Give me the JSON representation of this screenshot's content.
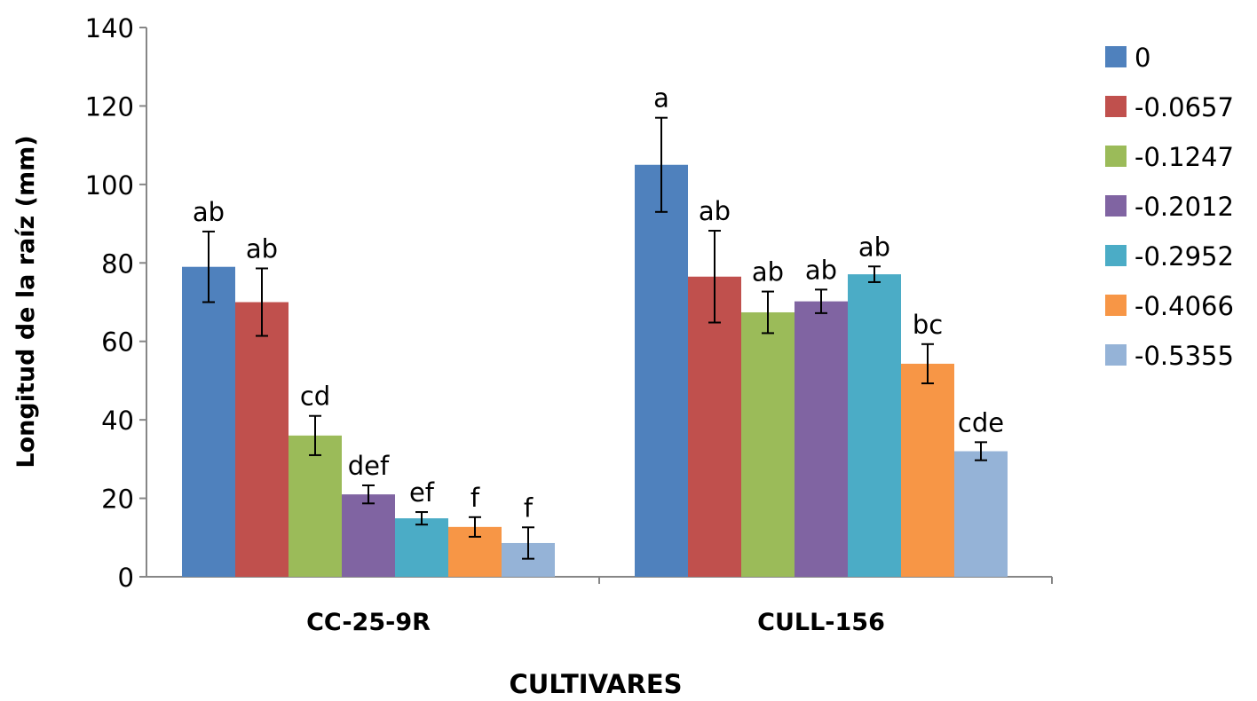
{
  "chart_data": {
    "type": "bar",
    "title": "",
    "xlabel": "CULTIVARES",
    "ylabel": "Longitud de la raíz (mm)",
    "ylim": [
      0,
      140
    ],
    "yticks": [
      0,
      20,
      40,
      60,
      80,
      100,
      120,
      140
    ],
    "grid": false,
    "legend_position": "right",
    "categories": [
      "CC-25-9R",
      "CULL-156"
    ],
    "series": [
      {
        "name": "0",
        "color": "#4F81BD",
        "values": [
          79,
          105
        ],
        "errors": [
          9,
          12
        ],
        "labels": [
          "ab",
          "a"
        ]
      },
      {
        "name": "-0.0657",
        "color": "#C0504D",
        "values": [
          70,
          76.5
        ],
        "errors": [
          8.6,
          11.7
        ],
        "labels": [
          "ab",
          "ab"
        ]
      },
      {
        "name": "-0.1247",
        "color": "#9BBB59",
        "values": [
          36,
          67.4
        ],
        "errors": [
          5,
          5.3
        ],
        "labels": [
          "cd",
          "ab"
        ]
      },
      {
        "name": "-0.2012",
        "color": "#8064A2",
        "values": [
          21,
          70.2
        ],
        "errors": [
          2.3,
          3
        ],
        "labels": [
          "def",
          "ab"
        ]
      },
      {
        "name": "-0.2952",
        "color": "#4BACC6",
        "values": [
          14.9,
          77.1
        ],
        "errors": [
          1.6,
          2
        ],
        "labels": [
          "ef",
          "ab"
        ]
      },
      {
        "name": "-0.4066",
        "color": "#F79646",
        "values": [
          12.7,
          54.3
        ],
        "errors": [
          2.5,
          5
        ],
        "labels": [
          "f",
          "bc"
        ]
      },
      {
        "name": "-0.5355",
        "color": "#95B3D7",
        "values": [
          8.6,
          32
        ],
        "errors": [
          4,
          2.3
        ],
        "labels": [
          "f",
          "cde"
        ]
      }
    ]
  }
}
